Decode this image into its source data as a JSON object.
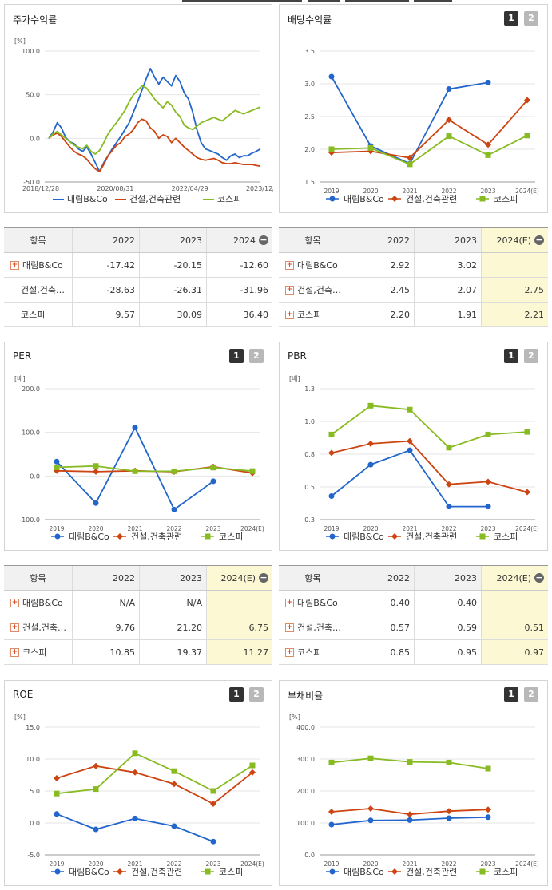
{
  "panels": {
    "stock_return": {
      "title": "주가수익률",
      "chart_data": {
        "type": "line",
        "unit_label": "[%]",
        "ylim": [
          -50,
          100
        ],
        "yticks": [
          "100.0",
          "50.0",
          "0.0",
          "-50.0"
        ],
        "xticks": [
          "2018/12/28",
          "2020/08/31",
          "2022/04/29",
          "2023/12/28"
        ],
        "series": [
          {
            "name": "대림B&Co",
            "color": "#2266cc",
            "values": [
              0,
              7,
              18,
              12,
              1,
              -4,
              -6,
              -12,
              -15,
              -10,
              -18,
              -28,
              -38,
              -28,
              -20,
              -12,
              -5,
              2,
              10,
              18,
              30,
              42,
              55,
              68,
              80,
              70,
              62,
              70,
              65,
              60,
              72,
              65,
              52,
              45,
              30,
              10,
              -5,
              -12,
              -14,
              -16,
              -18,
              -22,
              -25,
              -20,
              -18,
              -22,
              -20,
              -20,
              -17,
              -15,
              -12
            ]
          },
          {
            "name": "건설,건축관련",
            "color": "#cc4411",
            "values": [
              0,
              4,
              6,
              2,
              -4,
              -10,
              -15,
              -18,
              -20,
              -24,
              -30,
              -35,
              -38,
              -30,
              -20,
              -14,
              -8,
              -5,
              2,
              5,
              10,
              18,
              22,
              20,
              12,
              8,
              0,
              4,
              2,
              -5,
              0,
              -5,
              -10,
              -14,
              -18,
              -22,
              -24,
              -25,
              -24,
              -23,
              -25,
              -28,
              -29,
              -29,
              -28,
              -29,
              -30,
              -30,
              -30,
              -31,
              -32
            ]
          },
          {
            "name": "코스피",
            "color": "#88bb22",
            "values": [
              0,
              5,
              8,
              4,
              0,
              -4,
              -8,
              -10,
              -12,
              -8,
              -15,
              -18,
              -14,
              -5,
              5,
              12,
              18,
              25,
              32,
              42,
              50,
              55,
              60,
              58,
              52,
              45,
              40,
              35,
              42,
              38,
              30,
              25,
              15,
              12,
              10,
              14,
              18,
              20,
              22,
              24,
              22,
              20,
              24,
              28,
              32,
              30,
              28,
              30,
              32,
              34,
              36
            ]
          }
        ]
      }
    },
    "dividend": {
      "title": "배당수익률",
      "tabs": [
        "1",
        "2"
      ],
      "chart_data": {
        "type": "line",
        "unit_label": "",
        "ylim": [
          1.5,
          3.5
        ],
        "yticks": [
          "3.5",
          "3.0",
          "2.5",
          "2.0",
          "1.5"
        ],
        "categories": [
          "2019",
          "2020",
          "2021",
          "2022",
          "2023",
          "2024(E)"
        ],
        "series": [
          {
            "name": "대림B&Co",
            "color": "#2266cc",
            "marker": "circle",
            "values": [
              3.11,
              2.05,
              1.78,
              2.92,
              3.02,
              null
            ]
          },
          {
            "name": "건설,건축관련",
            "color": "#cc4411",
            "marker": "diamond",
            "values": [
              1.95,
              1.97,
              1.87,
              2.45,
              2.07,
              2.75
            ]
          },
          {
            "name": "코스피",
            "color": "#88bb22",
            "marker": "square",
            "values": [
              2.0,
              2.02,
              1.77,
              2.2,
              1.91,
              2.21
            ]
          }
        ]
      }
    },
    "per": {
      "title": "PER",
      "tabs": [
        "1",
        "2"
      ],
      "chart_data": {
        "type": "line",
        "unit_label": "[배]",
        "ylim": [
          -100,
          200
        ],
        "yticks": [
          "200.0",
          "100.0",
          "0.0",
          "-100.0"
        ],
        "categories": [
          "2019",
          "2020",
          "2021",
          "2022",
          "2023",
          "2024(E)"
        ],
        "series": [
          {
            "name": "대림B&Co",
            "color": "#2266cc",
            "marker": "circle",
            "values": [
              33,
              -62,
              111,
              -77,
              -12,
              null
            ]
          },
          {
            "name": "건설,건축관련",
            "color": "#cc4411",
            "marker": "diamond",
            "values": [
              12,
              10,
              12,
              9.76,
              21.2,
              6.75
            ]
          },
          {
            "name": "코스피",
            "color": "#88bb22",
            "marker": "square",
            "values": [
              20,
              23,
              11,
              10.85,
              19.37,
              11.27
            ]
          }
        ]
      }
    },
    "pbr": {
      "title": "PBR",
      "tabs": [
        "1",
        "2"
      ],
      "chart_data": {
        "type": "line",
        "unit_label": "[배]",
        "ylim": [
          0.3,
          1.3
        ],
        "yticks": [
          "1.3",
          "1.0",
          "0.8",
          "0.5",
          "0.3"
        ],
        "categories": [
          "2019",
          "2020",
          "2021",
          "2022",
          "2023",
          "2024(E)"
        ],
        "series": [
          {
            "name": "대림B&Co",
            "color": "#2266cc",
            "marker": "circle",
            "values": [
              0.48,
              0.72,
              0.83,
              0.4,
              0.4,
              null
            ]
          },
          {
            "name": "건설,건축관련",
            "color": "#cc4411",
            "marker": "diamond",
            "values": [
              0.81,
              0.88,
              0.9,
              0.57,
              0.59,
              0.51
            ]
          },
          {
            "name": "코스피",
            "color": "#88bb22",
            "marker": "square",
            "values": [
              0.95,
              1.17,
              1.14,
              0.85,
              0.95,
              0.97
            ]
          }
        ]
      }
    },
    "roe": {
      "title": "ROE",
      "tabs": [
        "1",
        "2"
      ],
      "chart_data": {
        "type": "line",
        "unit_label": "[%]",
        "ylim": [
          -5,
          15
        ],
        "yticks": [
          "15.0",
          "10.0",
          "5.0",
          "0.0",
          "-5.0"
        ],
        "categories": [
          "2019",
          "2020",
          "2021",
          "2022",
          "2023",
          "2024(E)"
        ],
        "series": [
          {
            "name": "대림B&Co",
            "color": "#2266cc",
            "marker": "circle",
            "values": [
              1.4,
              -1.0,
              0.7,
              -0.5,
              -2.9,
              null
            ]
          },
          {
            "name": "건설,건축관련",
            "color": "#cc4411",
            "marker": "diamond",
            "values": [
              7.0,
              8.9,
              7.9,
              6.1,
              3.0,
              7.9
            ]
          },
          {
            "name": "코스피",
            "color": "#88bb22",
            "marker": "square",
            "values": [
              4.6,
              5.3,
              10.9,
              8.1,
              5.0,
              9.0
            ]
          }
        ]
      }
    },
    "debt": {
      "title": "부채비율",
      "tabs": [
        "1",
        "2"
      ],
      "chart_data": {
        "type": "line",
        "unit_label": "[%]",
        "ylim": [
          0,
          400
        ],
        "yticks": [
          "400.0",
          "300.0",
          "200.0",
          "100.0",
          "0.0"
        ],
        "categories": [
          "2019",
          "2020",
          "2021",
          "2022",
          "2023",
          "2024(E)"
        ],
        "series": [
          {
            "name": "대림B&Co",
            "color": "#2266cc",
            "marker": "circle",
            "values": [
              95,
              108,
              109,
              115,
              118,
              null
            ]
          },
          {
            "name": "건설,건축관련",
            "color": "#cc4411",
            "marker": "diamond",
            "values": [
              135,
              145,
              127,
              137,
              142,
              null
            ]
          },
          {
            "name": "코스피",
            "color": "#88bb22",
            "marker": "square",
            "values": [
              289,
              302,
              291,
              289,
              270,
              null
            ]
          }
        ]
      }
    }
  },
  "tables": {
    "stock_return": {
      "headers": [
        "항목",
        "2022",
        "2023",
        "2024"
      ],
      "rows": [
        {
          "name": "대림B&Co",
          "plus": true,
          "values": [
            "-17.42",
            "-20.15",
            "-12.60"
          ]
        },
        {
          "name": "건설,건축…",
          "plus": false,
          "values": [
            "-28.63",
            "-26.31",
            "-31.96"
          ]
        },
        {
          "name": "코스피",
          "plus": false,
          "values": [
            "9.57",
            "30.09",
            "36.40"
          ]
        }
      ]
    },
    "dividend": {
      "headers": [
        "항목",
        "2022",
        "2023",
        "2024(E)"
      ],
      "rows": [
        {
          "name": "대림B&Co",
          "plus": true,
          "values": [
            "2.92",
            "3.02",
            ""
          ]
        },
        {
          "name": "건설,건축…",
          "plus": true,
          "values": [
            "2.45",
            "2.07",
            "2.75"
          ]
        },
        {
          "name": "코스피",
          "plus": true,
          "values": [
            "2.20",
            "1.91",
            "2.21"
          ]
        }
      ]
    },
    "per": {
      "headers": [
        "항목",
        "2022",
        "2023",
        "2024(E)"
      ],
      "rows": [
        {
          "name": "대림B&Co",
          "plus": true,
          "values": [
            "N/A",
            "N/A",
            ""
          ]
        },
        {
          "name": "건설,건축…",
          "plus": true,
          "values": [
            "9.76",
            "21.20",
            "6.75"
          ]
        },
        {
          "name": "코스피",
          "plus": true,
          "values": [
            "10.85",
            "19.37",
            "11.27"
          ]
        }
      ]
    },
    "pbr": {
      "headers": [
        "항목",
        "2022",
        "2023",
        "2024(E)"
      ],
      "rows": [
        {
          "name": "대림B&Co",
          "plus": true,
          "values": [
            "0.40",
            "0.40",
            ""
          ]
        },
        {
          "name": "건설,건축…",
          "plus": true,
          "values": [
            "0.57",
            "0.59",
            "0.51"
          ]
        },
        {
          "name": "코스피",
          "plus": true,
          "values": [
            "0.85",
            "0.95",
            "0.97"
          ]
        }
      ]
    }
  }
}
